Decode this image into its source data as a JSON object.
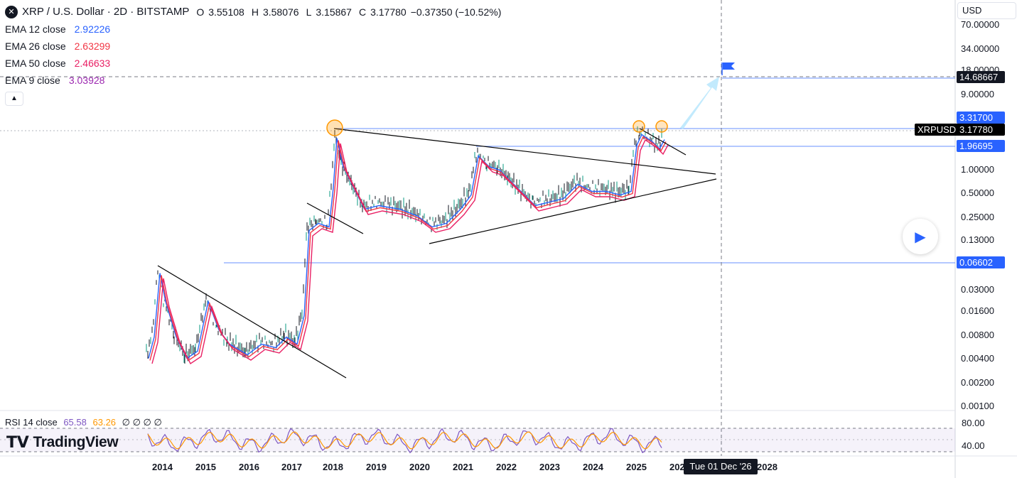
{
  "header": {
    "symbol_icon": "x-icon",
    "title": "XRP / U.S. Dollar · 2D · BITSTAMP",
    "ohlc": [
      {
        "label": "O",
        "value": "3.55108"
      },
      {
        "label": "H",
        "value": "3.58076"
      },
      {
        "label": "L",
        "value": "3.15867"
      },
      {
        "label": "C",
        "value": "3.17780"
      }
    ],
    "change": "−0.37350 (−10.52%)"
  },
  "indicators": [
    {
      "label": "EMA 12 close",
      "value": "2.92226",
      "color": "#2962ff"
    },
    {
      "label": "EMA 26 close",
      "value": "2.63299",
      "color": "#f23645"
    },
    {
      "label": "EMA 50 close",
      "value": "2.46633",
      "color": "#e91e63"
    },
    {
      "label": "EMA 9 close",
      "value": "3.03928",
      "color": "#9c27b0"
    }
  ],
  "collapse_icon": "chevron-up-icon",
  "rsi": {
    "label": "RSI 14 close",
    "value1": "65.58",
    "value2": "63.26",
    "extras": "∅ ∅ ∅ ∅",
    "color1": "#7e57c2",
    "color2": "#ff9800"
  },
  "logo": {
    "text": "TradingView",
    "icon": "tradingview-logo-icon"
  },
  "currency": "USD",
  "price_axis": {
    "ticks": [
      "70.00000",
      "34.00000",
      "18.00000",
      "9.00000",
      "1.00000",
      "0.50000",
      "0.25000",
      "0.13000",
      "0.03000",
      "0.01600",
      "0.00800",
      "0.00400",
      "0.00200",
      "0.00100"
    ],
    "tags": [
      {
        "value": "14.68667",
        "color": "#131722"
      },
      {
        "value": "3.31700",
        "color": "#2962ff"
      },
      {
        "value": "1.96695",
        "color": "#2962ff"
      },
      {
        "value": "0.06602",
        "color": "#2962ff"
      }
    ],
    "symbol_tag": "XRPUSD",
    "last_price": "3.17780"
  },
  "rsi_axis": {
    "ticks": [
      "80.00",
      "40.00"
    ]
  },
  "time_axis": {
    "years": [
      "2014",
      "2015",
      "2016",
      "2017",
      "2018",
      "2019",
      "2020",
      "2021",
      "2022",
      "2023",
      "2024",
      "2025",
      "202",
      "2028"
    ],
    "crosshair_date": "Tue 01 Dec '26"
  },
  "play_icon": "play-icon",
  "colors": {
    "accent": "#2962ff",
    "highlight": "#ff9800",
    "target_arrow": "#b3e5fc"
  }
}
